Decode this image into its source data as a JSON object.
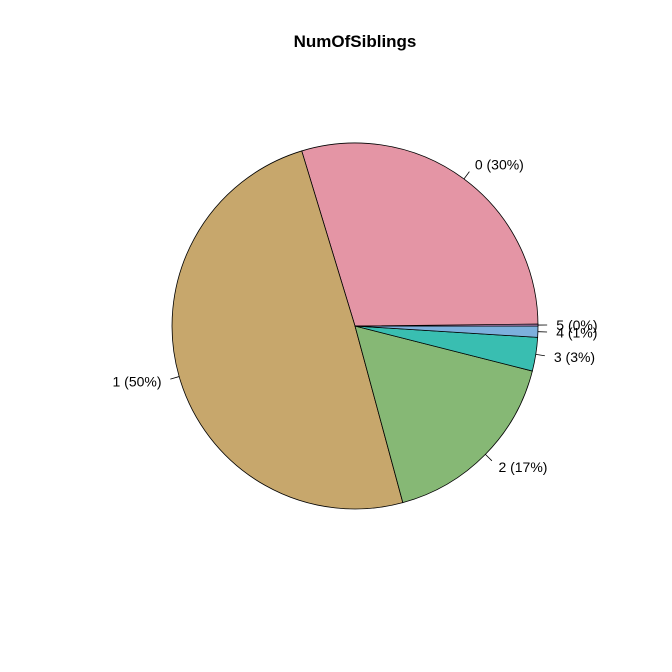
{
  "chart_data": {
    "type": "pie",
    "title": "NumOfSiblings",
    "categories": [
      "0",
      "1",
      "2",
      "3",
      "4",
      "5"
    ],
    "values": [
      30,
      50,
      17,
      3,
      1,
      0
    ],
    "labels": [
      "0 (30%)",
      "1 (50%)",
      "2 (17%)",
      "3 (3%)",
      "4 (1%)",
      "5 (0%)"
    ],
    "colors": [
      "#E495A5",
      "#C7A76C",
      "#86B875",
      "#39BEB1",
      "#7DB0DD",
      "#CD99D8"
    ],
    "start_angle_deg": 0,
    "direction": "counterclockwise",
    "legend": "none"
  }
}
